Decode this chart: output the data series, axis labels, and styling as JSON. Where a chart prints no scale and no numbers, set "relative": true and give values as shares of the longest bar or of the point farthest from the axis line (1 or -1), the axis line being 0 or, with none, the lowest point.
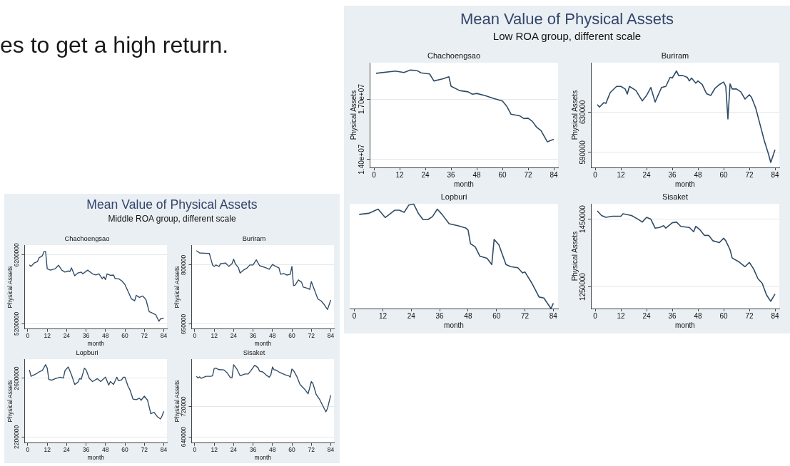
{
  "chart_data": [
    {
      "type": "other",
      "annotations": [
        "es to get a high return."
      ]
    },
    {
      "type": "other",
      "title": "Mean Value of Physical Assets",
      "subtitle": "Low ROA group, different scale"
    },
    {
      "type": "line",
      "title": "Chachoengsao",
      "xlabel": "month",
      "ylabel": "Physical Assets",
      "xlim": [
        -2,
        86
      ],
      "xticks": [
        0,
        12,
        24,
        36,
        48,
        60,
        72,
        84
      ],
      "ylim": [
        13600000,
        18800000
      ],
      "yticks": [
        {
          "value": 14000000,
          "label": "1.40e+07"
        },
        {
          "value": 17000000,
          "label": "1.70e+07"
        }
      ],
      "grid": "y",
      "series": [
        {
          "color": "#2f4b66",
          "x": [
            1,
            10,
            14,
            17,
            20,
            22,
            26,
            28,
            32,
            35,
            36,
            40,
            44,
            46,
            48,
            52,
            56,
            60,
            62,
            64,
            68,
            70,
            72,
            74,
            76,
            78,
            81,
            82,
            84
          ],
          "values": [
            18280000,
            18390000,
            18320000,
            18440000,
            18420000,
            18300000,
            18250000,
            17900000,
            18000000,
            18110000,
            17640000,
            17420000,
            17360000,
            17240000,
            17280000,
            17170000,
            17030000,
            16900000,
            16650000,
            16250000,
            16170000,
            16030000,
            16050000,
            15890000,
            15600000,
            15440000,
            14870000,
            14920000,
            15000000
          ]
        }
      ]
    },
    {
      "type": "line",
      "title": "Buriram",
      "xlabel": "month",
      "ylabel": "Physical Assets",
      "xlim": [
        -2,
        86
      ],
      "xticks": [
        0,
        12,
        24,
        36,
        48,
        60,
        72,
        84
      ],
      "ylim": [
        575000,
        679000
      ],
      "yticks": [
        590000,
        630000
      ],
      "grid": "y",
      "series": [
        {
          "color": "#2f4b66",
          "x": [
            1,
            2,
            4,
            5,
            7,
            10,
            12,
            14,
            15,
            16,
            19,
            22,
            24,
            26,
            28,
            31,
            33,
            35,
            36,
            38,
            39,
            41,
            43,
            44,
            45,
            47,
            48,
            50,
            52,
            54,
            56,
            58,
            60,
            61,
            62,
            63,
            64,
            66,
            68,
            70,
            72,
            73,
            75,
            77,
            79,
            81,
            82,
            84
          ],
          "values": [
            637600,
            635000,
            639400,
            638700,
            649400,
            655600,
            655600,
            653000,
            648000,
            655600,
            651600,
            641200,
            646600,
            654500,
            640100,
            654500,
            655600,
            664600,
            663900,
            671000,
            666300,
            666300,
            664600,
            661000,
            663900,
            658800,
            661000,
            657400,
            648400,
            646600,
            653800,
            657400,
            659900,
            655600,
            623200,
            658100,
            653000,
            653000,
            650200,
            643000,
            647300,
            644800,
            634000,
            617800,
            601600,
            587900,
            580000,
            592600
          ]
        }
      ]
    },
    {
      "type": "line",
      "title": "Lopburi",
      "xlabel": "month",
      "xlim": [
        -2,
        86
      ],
      "xticks": [
        0,
        12,
        24,
        36,
        48,
        60,
        72,
        84
      ],
      "relative": true,
      "tick_labels": "x",
      "series": [
        {
          "color": "#2f4b66",
          "x": [
            2,
            6,
            10,
            13,
            17,
            19,
            21,
            23,
            25,
            27,
            29,
            31,
            33,
            35,
            37,
            40,
            44,
            47,
            48,
            49,
            51,
            53,
            56,
            58,
            59,
            61,
            64,
            66,
            69,
            71,
            72,
            75,
            78,
            80,
            83,
            84
          ],
          "values": [
            0.9,
            0.91,
            0.95,
            0.87,
            0.94,
            0.94,
            0.92,
            0.99,
            1,
            0.91,
            0.85,
            0.85,
            0.88,
            0.95,
            0.9,
            0.81,
            0.79,
            0.77,
            0.75,
            0.62,
            0.59,
            0.5,
            0.48,
            0.42,
            0.66,
            0.61,
            0.42,
            0.4,
            0.39,
            0.34,
            0.35,
            0.24,
            0.11,
            0.1,
            0,
            0.05
          ]
        }
      ]
    },
    {
      "type": "line",
      "title": "Sisaket",
      "xlabel": "month",
      "ylabel": "Physical Assets",
      "xlim": [
        -2,
        86
      ],
      "xticks": [
        0,
        12,
        24,
        36,
        48,
        60,
        72,
        84
      ],
      "ylim": [
        1186000,
        1495000
      ],
      "yticks": [
        1250000,
        1450000
      ],
      "grid": "y",
      "series": [
        {
          "color": "#2f4b66",
          "x": [
            1,
            3,
            5,
            8,
            12,
            13,
            17,
            20,
            22,
            24,
            26,
            28,
            30,
            32,
            33,
            36,
            38,
            40,
            44,
            46,
            47,
            49,
            51,
            53,
            55,
            58,
            60,
            61,
            63,
            64,
            67,
            70,
            72,
            74,
            76,
            78,
            80,
            82,
            84
          ],
          "values": [
            1474500,
            1460600,
            1455300,
            1458500,
            1458500,
            1466000,
            1460600,
            1450000,
            1441500,
            1455300,
            1450000,
            1423400,
            1425500,
            1430800,
            1423400,
            1439400,
            1441500,
            1428700,
            1425500,
            1412800,
            1428700,
            1418100,
            1402100,
            1402100,
            1386200,
            1380800,
            1393600,
            1386200,
            1359600,
            1335100,
            1324500,
            1309600,
            1322300,
            1303200,
            1274400,
            1260600,
            1226600,
            1207400,
            1228700
          ]
        }
      ]
    },
    {
      "type": "other",
      "title": "Mean Value of Physical Assets",
      "subtitle": "Middle ROA group, different scale"
    },
    {
      "type": "line",
      "title": "Chachoengsao",
      "xlabel": "month",
      "ylabel": "Physical Assets",
      "xlim": [
        -2,
        86
      ],
      "xticks": [
        0,
        12,
        24,
        36,
        48,
        60,
        72,
        84
      ],
      "ylim": [
        5125000,
        6340000
      ],
      "yticks": [
        5200000,
        6200000
      ],
      "grid": "y",
      "series": [
        {
          "color": "#2f4b66",
          "x": [
            1,
            2,
            4,
            6,
            7,
            9,
            10,
            11,
            12,
            14,
            17,
            19,
            21,
            23,
            25,
            26,
            27,
            29,
            31,
            33,
            34,
            37,
            40,
            42,
            44,
            46,
            47,
            48,
            49,
            51,
            53,
            54,
            56,
            58,
            60,
            62,
            64,
            66,
            67,
            69,
            71,
            73,
            75,
            77,
            79,
            81,
            82,
            84
          ],
          "values": [
            6054000,
            6033000,
            6083000,
            6104000,
            6158000,
            6188000,
            6250000,
            6250000,
            6000000,
            5979000,
            6000000,
            6050000,
            5979000,
            5950000,
            5967000,
            5958000,
            6012000,
            5896000,
            5938000,
            5950000,
            5925000,
            5979000,
            5925000,
            5908000,
            5925000,
            5854000,
            5883000,
            5842000,
            5925000,
            5904000,
            5908000,
            5854000,
            5854000,
            5825000,
            5771000,
            5667000,
            5562000,
            5533000,
            5612000,
            5583000,
            5604000,
            5550000,
            5375000,
            5354000,
            5333000,
            5237000,
            5271000,
            5283000
          ]
        }
      ]
    },
    {
      "type": "line",
      "title": "Buriram",
      "xlabel": "month",
      "ylabel": "Physical Assets",
      "xlim": [
        -2,
        86
      ],
      "xticks": [
        0,
        12,
        24,
        36,
        48,
        60,
        72,
        84
      ],
      "ylim": [
        638000,
        850000
      ],
      "yticks": [
        650000,
        800000
      ],
      "grid": "y",
      "series": [
        {
          "color": "#2f4b66",
          "x": [
            1,
            3,
            6,
            9,
            10,
            11,
            12,
            13,
            15,
            16,
            19,
            21,
            23,
            24,
            25,
            27,
            28,
            30,
            32,
            34,
            36,
            38,
            40,
            44,
            46,
            48,
            50,
            52,
            53,
            55,
            57,
            59,
            60,
            61,
            62,
            64,
            66,
            67,
            70,
            71,
            72,
            74,
            76,
            78,
            80,
            82,
            84
          ],
          "values": [
            836400,
            830600,
            829900,
            829100,
            814600,
            800000,
            796400,
            800000,
            796400,
            803600,
            805100,
            796400,
            803600,
            814600,
            803600,
            792700,
            779600,
            786900,
            791300,
            800000,
            800000,
            813100,
            798500,
            792700,
            789100,
            801500,
            796400,
            792700,
            776700,
            778200,
            774500,
            776700,
            796400,
            747600,
            749100,
            762100,
            756300,
            743900,
            740300,
            738100,
            757800,
            736000,
            714100,
            709000,
            699500,
            687200,
            711200
          ]
        }
      ]
    },
    {
      "type": "line",
      "title": "Lopburi",
      "xlabel": "month",
      "ylabel": "Physical Assets",
      "xlim": [
        -2,
        86
      ],
      "xticks": [
        0,
        12,
        24,
        36,
        48,
        60,
        72,
        84
      ],
      "ylim": [
        2160000,
        2730000
      ],
      "yticks": [
        2200000,
        2600000
      ],
      "grid": "y",
      "series": [
        {
          "color": "#2f4b66",
          "x": [
            1,
            2,
            5,
            7,
            9,
            11,
            12,
            13,
            15,
            17,
            20,
            22,
            23,
            25,
            27,
            29,
            31,
            32,
            33,
            35,
            36,
            38,
            40,
            43,
            45,
            48,
            50,
            51,
            53,
            55,
            56,
            58,
            59,
            60,
            62,
            63,
            65,
            67,
            69,
            70,
            72,
            74,
            76,
            78,
            80,
            82,
            83,
            84
          ],
          "values": [
            2657700,
            2613900,
            2629800,
            2643700,
            2653700,
            2693500,
            2669700,
            2592000,
            2588000,
            2598000,
            2607900,
            2602000,
            2653700,
            2677600,
            2624000,
            2558200,
            2574100,
            2598000,
            2594000,
            2669700,
            2657700,
            2600000,
            2578100,
            2598000,
            2578100,
            2608000,
            2554200,
            2578100,
            2558200,
            2608000,
            2584100,
            2590000,
            2608000,
            2608000,
            2544300,
            2524400,
            2458700,
            2454700,
            2464700,
            2450700,
            2478600,
            2450700,
            2359200,
            2369100,
            2339300,
            2323400,
            2345300,
            2375100
          ]
        }
      ]
    },
    {
      "type": "line",
      "title": "Sisaket",
      "xlabel": "month",
      "ylabel": "Physical Assets",
      "xlim": [
        -2,
        86
      ],
      "xticks": [
        0,
        12,
        24,
        36,
        48,
        60,
        72,
        84
      ],
      "ylim": [
        624000,
        845000
      ],
      "yticks": [
        640000,
        720000
      ],
      "grid": "y",
      "series": [
        {
          "color": "#2f4b66",
          "x": [
            1,
            2,
            3,
            4,
            7,
            10,
            11,
            12,
            13,
            15,
            18,
            20,
            22,
            23,
            24,
            26,
            28,
            31,
            33,
            35,
            37,
            39,
            40,
            42,
            44,
            46,
            47,
            48,
            49,
            50,
            52,
            54,
            56,
            58,
            59,
            60,
            61,
            63,
            65,
            68,
            70,
            72,
            73,
            75,
            77,
            79,
            81,
            82,
            84
          ],
          "values": [
            800000,
            795400,
            798500,
            794600,
            800000,
            800000,
            801500,
            820700,
            821500,
            817600,
            816900,
            809200,
            796100,
            796100,
            830700,
            819200,
            801500,
            806100,
            806100,
            816900,
            829200,
            823100,
            813800,
            811500,
            803800,
            797700,
            803800,
            824600,
            816900,
            816900,
            811500,
            807700,
            803800,
            801500,
            797700,
            819200,
            815400,
            800000,
            778400,
            765300,
            753800,
            786100,
            780700,
            752200,
            739900,
            723100,
            706200,
            715400,
            750000
          ]
        }
      ]
    }
  ]
}
